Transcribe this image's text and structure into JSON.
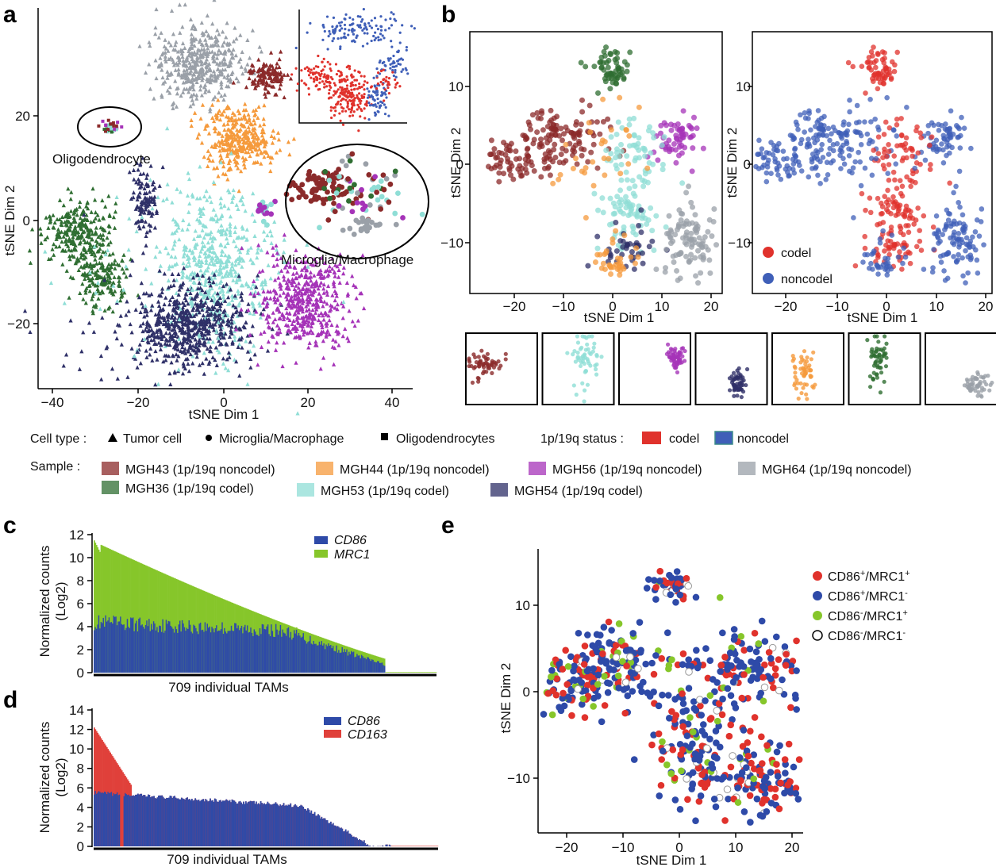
{
  "colors": {
    "MGH43": "#8b2a2a",
    "MGH44": "#f59a3c",
    "MGH56": "#a533b8",
    "MGH64": "#9aa0a8",
    "MGH36": "#2f6e32",
    "MGH53": "#8fded6",
    "MGH54": "#2f3068",
    "codel": "#e0322c",
    "noncodel": "#3f5fb8",
    "cd86": "#2e4aa8",
    "mrc1": "#86c62a",
    "cd163": "#e0403a",
    "dp": "#e0322c",
    "cd86only": "#2e4aa8",
    "mrc1only": "#86c62a"
  },
  "panels": {
    "a": "a",
    "b": "b",
    "c": "c",
    "d": "d",
    "e": "e"
  },
  "panel_a": {
    "xlabel": "tSNE Dim 1",
    "ylabel": "tSNE Dim 2",
    "xticks": [
      "−40",
      "−20",
      "0",
      "20",
      "40"
    ],
    "yticks": [
      "20",
      "0",
      "−20"
    ],
    "annot_oligo": "Oligodendrocyte",
    "annot_micro": "Microglia/Macrophage"
  },
  "panel_b": {
    "xlabel_left": "tSNE Dim 1",
    "ylabel_left": "tSNE Dim 2",
    "xlabel_right": "tSNE Dim 1",
    "ylabel_right": "tSNE Dim 2",
    "xticks": [
      "−20",
      "−10",
      "0",
      "10",
      "20"
    ],
    "yticks": [
      "10",
      "0",
      "−10"
    ],
    "legend_codel": "codel",
    "legend_noncodel": "noncodel"
  },
  "legend": {
    "cell_type_label": "Cell type :",
    "cell_types": [
      "Tumor cell",
      "Microglia/Macrophage",
      "Oligodendrocytes"
    ],
    "status_label": "1p/19q status :",
    "status": [
      "codel",
      "noncodel"
    ],
    "sample_label": "Sample :",
    "samples": [
      {
        "label": "MGH43 (1p/19q noncodel)",
        "key": "MGH43"
      },
      {
        "label": "MGH44 (1p/19q noncodel)",
        "key": "MGH44"
      },
      {
        "label": "MGH56 (1p/19q noncodel)",
        "key": "MGH56"
      },
      {
        "label": "MGH64 (1p/19q noncodel)",
        "key": "MGH64"
      },
      {
        "label": "MGH36 (1p/19q codel)",
        "key": "MGH36"
      },
      {
        "label": "MGH53 (1p/19q codel)",
        "key": "MGH53"
      },
      {
        "label": "MGH54 (1p/19q codel)",
        "key": "MGH54"
      }
    ]
  },
  "panel_c": {
    "ylabel1": "Normalized counts",
    "ylabel2": "(Log2)",
    "yticks": [
      "0",
      "2",
      "4",
      "6",
      "8",
      "10",
      "12"
    ],
    "xlabel": "709 individual TAMs",
    "legend": [
      "CD86",
      "MRC1"
    ]
  },
  "panel_d": {
    "ylabel1": "Normalized counts",
    "ylabel2": "(Log2)",
    "yticks": [
      "0",
      "2",
      "4",
      "6",
      "8",
      "10",
      "12",
      "14"
    ],
    "xlabel": "709 individual TAMs",
    "legend": [
      "CD86",
      "CD163"
    ]
  },
  "panel_e": {
    "xlabel": "tSNE Dim 1",
    "ylabel": "tSNE Dim 2",
    "xticks": [
      "−20",
      "−10",
      "0",
      "10",
      "20"
    ],
    "yticks": [
      "10",
      "0",
      "−10"
    ],
    "legend": [
      {
        "base": "CD86",
        "s1": "+",
        "mid": "/MRC1",
        "s2": "+"
      },
      {
        "base": "CD86",
        "s1": "+",
        "mid": "/MRC1",
        "s2": "-"
      },
      {
        "base": "CD86",
        "s1": "-",
        "mid": "/MRC1",
        "s2": "+"
      },
      {
        "base": "CD86",
        "s1": "-",
        "mid": "/MRC1",
        "s2": "-"
      }
    ]
  },
  "chart_data": [
    {
      "panel": "c",
      "type": "bar",
      "title": "",
      "xlabel": "709 individual TAMs",
      "ylabel": "Normalized counts (Log2)",
      "ylim": [
        0,
        12
      ],
      "series": [
        {
          "name": "CD86",
          "description": "sorted, ~4.5 decreasing to 0"
        },
        {
          "name": "MRC1",
          "description": "stacked above CD86, top ~11.7 decreasing"
        }
      ],
      "n_cells": 709
    },
    {
      "panel": "d",
      "type": "bar",
      "title": "",
      "xlabel": "709 individual TAMs",
      "ylabel": "Normalized counts (Log2)",
      "ylim": [
        0,
        14
      ],
      "series": [
        {
          "name": "CD86"
        },
        {
          "name": "CD163"
        }
      ],
      "max_value": 12.2,
      "n_cells": 709
    }
  ]
}
